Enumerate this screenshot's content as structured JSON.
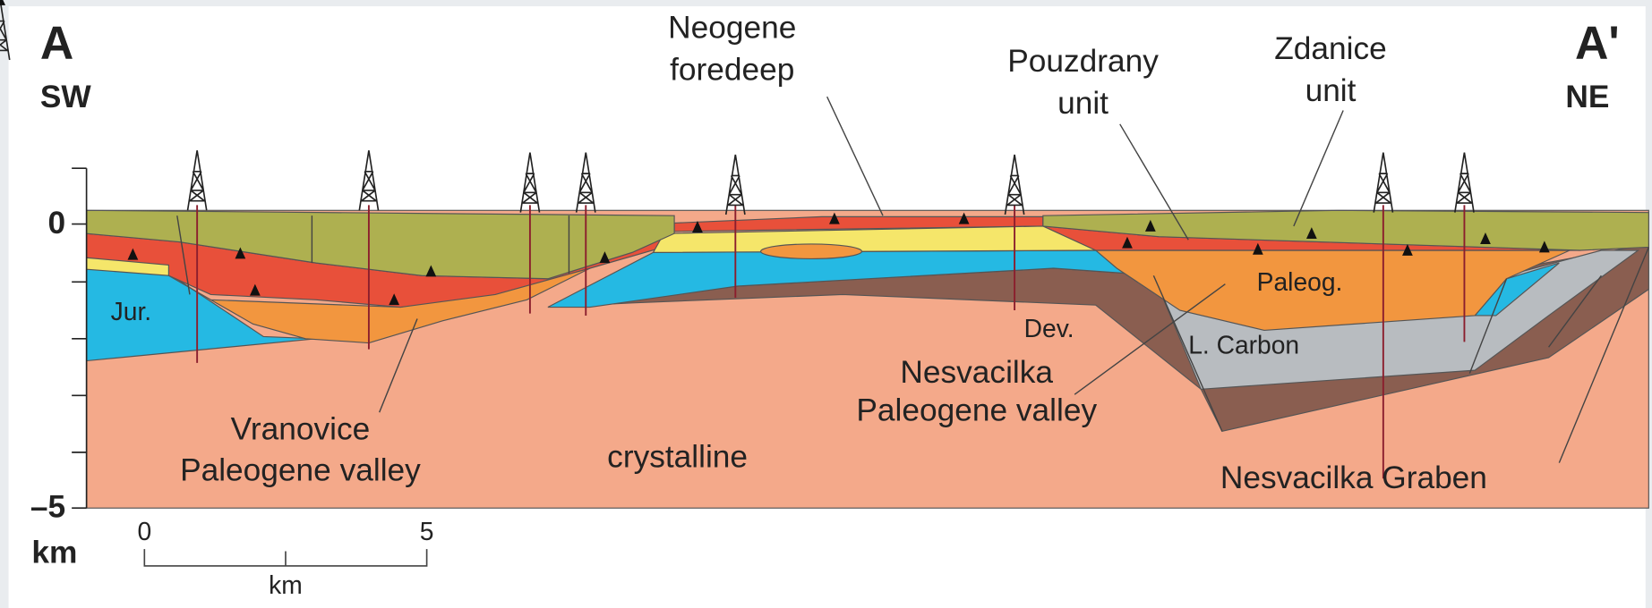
{
  "header": {
    "left_letter": "A",
    "left_direction": "SW",
    "right_letter": "A'",
    "right_direction": "NE"
  },
  "labels": {
    "neogene_foredeep": [
      "Neogene",
      "foredeep"
    ],
    "pouzdrany_unit": [
      "Pouzdrany",
      "unit"
    ],
    "zdanice_unit": [
      "Zdanice",
      "unit"
    ],
    "jur": "Jur.",
    "paleog": "Paleog.",
    "dev": "Dev.",
    "l_carbon": "L. Carbon",
    "nesvacilka_valley": [
      "Nesvacilka",
      "Paleogene valley"
    ],
    "vranovice_valley": [
      "Vranovice",
      "Paleogene valley"
    ],
    "crystalline": "crystalline",
    "nesvacilka_graben": "Nesvacilka Graben"
  },
  "depth_axis": {
    "top_label": "0",
    "bottom_label": "–5",
    "unit": "km"
  },
  "scale_bar": {
    "start": "0",
    "end": "5",
    "unit": "km"
  }
}
